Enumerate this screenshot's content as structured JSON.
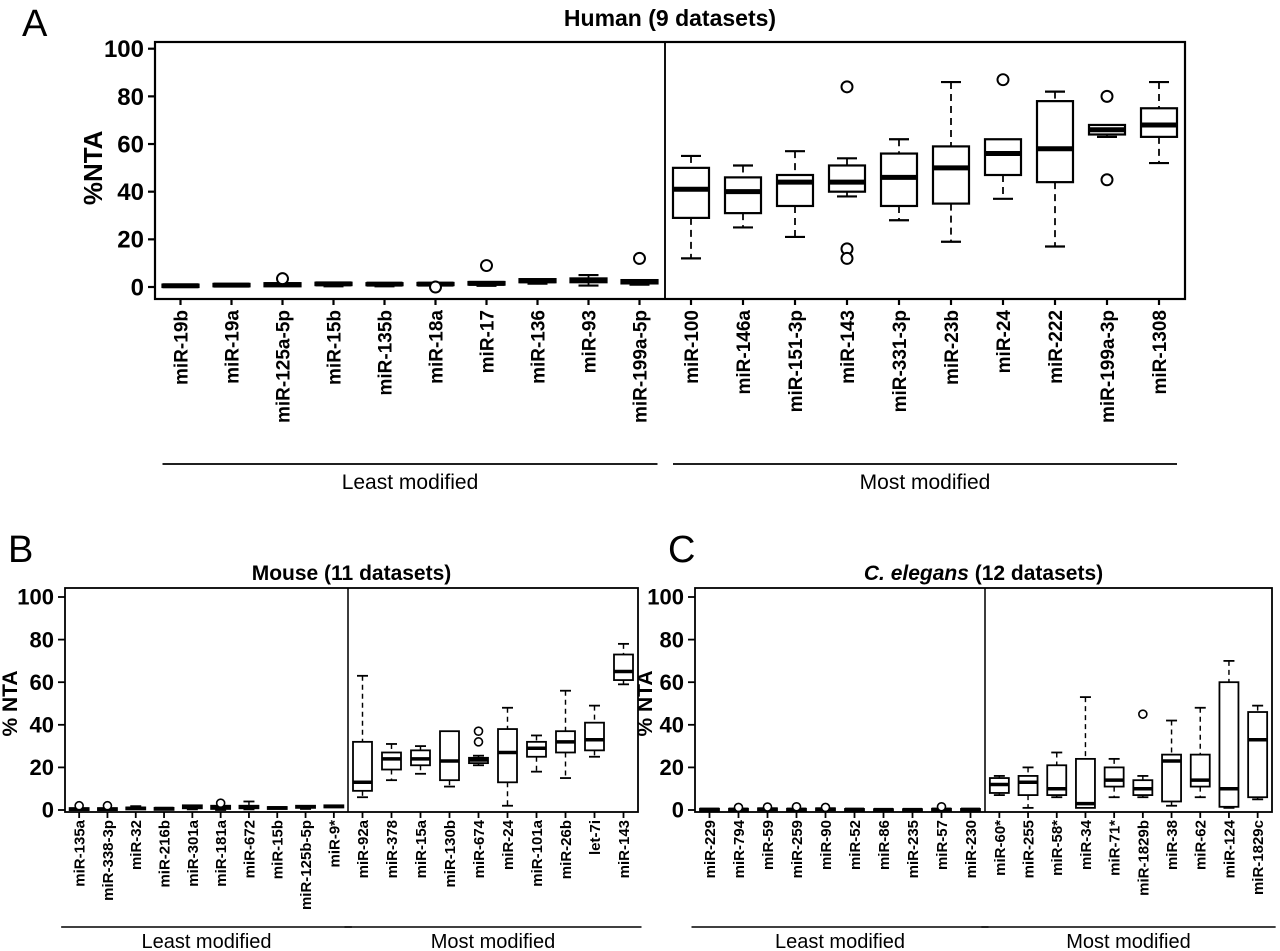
{
  "figure": {
    "background": "#ffffff",
    "ink_color": "#000000",
    "group_underline": true
  },
  "chart_data": [
    {
      "type": "box",
      "panel_label": "A",
      "title_italic_part": "",
      "title": "Human (9 datasets)",
      "ylabel": "%NTA",
      "ylim": [
        0,
        100
      ],
      "yticks": [
        0,
        20,
        40,
        60,
        80,
        100
      ],
      "grid": false,
      "groups": [
        {
          "label": "Least modified",
          "boxes": [
            {
              "name": "miR-19b",
              "whislo": 0,
              "q1": 0,
              "med": 0.5,
              "q3": 1,
              "whishi": 1.2,
              "fliers": []
            },
            {
              "name": "miR-19a",
              "whislo": 0,
              "q1": 0.3,
              "med": 0.8,
              "q3": 1.3,
              "whishi": 1.5,
              "fliers": []
            },
            {
              "name": "miR-125a-5p",
              "whislo": 0,
              "q1": 0.3,
              "med": 1,
              "q3": 1.6,
              "whishi": 2,
              "fliers": [
                3.5
              ]
            },
            {
              "name": "miR-15b",
              "whislo": 0.3,
              "q1": 0.8,
              "med": 1.3,
              "q3": 1.8,
              "whishi": 2.1,
              "fliers": []
            },
            {
              "name": "miR-135b",
              "whislo": 0.3,
              "q1": 0.8,
              "med": 1.2,
              "q3": 1.6,
              "whishi": 1.9,
              "fliers": []
            },
            {
              "name": "miR-18a",
              "whislo": 0.4,
              "q1": 0.8,
              "med": 1.2,
              "q3": 1.7,
              "whishi": 2,
              "fliers": [
                0
              ]
            },
            {
              "name": "miR-17",
              "whislo": 0.5,
              "q1": 1,
              "med": 1.5,
              "q3": 2.1,
              "whishi": 2.4,
              "fliers": [
                9
              ]
            },
            {
              "name": "miR-136",
              "whislo": 1.4,
              "q1": 2,
              "med": 2.6,
              "q3": 3.3,
              "whishi": 3.6,
              "fliers": []
            },
            {
              "name": "miR-93",
              "whislo": 0.6,
              "q1": 2,
              "med": 2.8,
              "q3": 3.6,
              "whishi": 5,
              "fliers": []
            },
            {
              "name": "miR-199a-5p",
              "whislo": 1,
              "q1": 1.5,
              "med": 2.1,
              "q3": 2.9,
              "whishi": 3.2,
              "fliers": [
                12
              ]
            }
          ]
        },
        {
          "label": "Most modified",
          "boxes": [
            {
              "name": "miR-100",
              "whislo": 12,
              "q1": 29,
              "med": 41,
              "q3": 50,
              "whishi": 55,
              "fliers": []
            },
            {
              "name": "miR-146a",
              "whislo": 25,
              "q1": 31,
              "med": 40,
              "q3": 46,
              "whishi": 51,
              "fliers": []
            },
            {
              "name": "miR-151-3p",
              "whislo": 21,
              "q1": 34,
              "med": 44,
              "q3": 47,
              "whishi": 57,
              "fliers": []
            },
            {
              "name": "miR-143",
              "whislo": 38,
              "q1": 40,
              "med": 44,
              "q3": 51,
              "whishi": 54,
              "fliers": [
                84,
                16,
                12
              ]
            },
            {
              "name": "miR-331-3p",
              "whislo": 28,
              "q1": 34,
              "med": 46,
              "q3": 56,
              "whishi": 62,
              "fliers": []
            },
            {
              "name": "miR-23b",
              "whislo": 19,
              "q1": 35,
              "med": 50,
              "q3": 59,
              "whishi": 86,
              "fliers": []
            },
            {
              "name": "miR-24",
              "whislo": 37,
              "q1": 47,
              "med": 56,
              "q3": 62,
              "whishi": 62,
              "fliers": [
                87
              ]
            },
            {
              "name": "miR-222",
              "whislo": 17,
              "q1": 44,
              "med": 58,
              "q3": 78,
              "whishi": 82,
              "fliers": []
            },
            {
              "name": "miR-199a-3p",
              "whislo": 63,
              "q1": 64,
              "med": 66,
              "q3": 68,
              "whishi": 68,
              "fliers": [
                80,
                45
              ]
            },
            {
              "name": "miR-1308",
              "whislo": 52,
              "q1": 63,
              "med": 68,
              "q3": 75,
              "whishi": 86,
              "fliers": []
            }
          ]
        }
      ]
    },
    {
      "type": "box",
      "panel_label": "B",
      "title_italic_part": "",
      "title": "Mouse (11 datasets)",
      "ylabel": "% NTA",
      "ylim": [
        0,
        100
      ],
      "yticks": [
        0,
        20,
        40,
        60,
        80,
        100
      ],
      "grid": false,
      "groups": [
        {
          "label": "Least modified",
          "boxes": [
            {
              "name": "miR-135a",
              "whislo": 0,
              "q1": 0,
              "med": 0.4,
              "q3": 0.9,
              "whishi": 1.1,
              "fliers": [
                2
              ]
            },
            {
              "name": "miR-338-3p",
              "whislo": 0,
              "q1": 0,
              "med": 0.4,
              "q3": 0.9,
              "whishi": 1.1,
              "fliers": [
                2
              ]
            },
            {
              "name": "miR-32",
              "whislo": 0,
              "q1": 0.3,
              "med": 0.8,
              "q3": 1.2,
              "whishi": 1.8,
              "fliers": []
            },
            {
              "name": "miR-216b",
              "whislo": 0,
              "q1": 0.3,
              "med": 0.7,
              "q3": 1,
              "whishi": 1.2,
              "fliers": []
            },
            {
              "name": "miR-301a",
              "whislo": 0.3,
              "q1": 0.8,
              "med": 1.5,
              "q3": 2.2,
              "whishi": 2.5,
              "fliers": []
            },
            {
              "name": "miR-181a",
              "whislo": 0,
              "q1": 0.5,
              "med": 1.2,
              "q3": 2,
              "whishi": 2.3,
              "fliers": [
                3.2
              ]
            },
            {
              "name": "miR-672",
              "whislo": 0.3,
              "q1": 0.8,
              "med": 1.3,
              "q3": 2,
              "whishi": 4,
              "fliers": []
            },
            {
              "name": "miR-15b",
              "whislo": 0.3,
              "q1": 0.6,
              "med": 1,
              "q3": 1.4,
              "whishi": 1.7,
              "fliers": []
            },
            {
              "name": "miR-125b-5p",
              "whislo": 0.5,
              "q1": 1,
              "med": 1.5,
              "q3": 2,
              "whishi": 2.4,
              "fliers": []
            },
            {
              "name": "miR-9*",
              "whislo": 0.8,
              "q1": 1.2,
              "med": 1.7,
              "q3": 2.2,
              "whishi": 2.5,
              "fliers": []
            }
          ]
        },
        {
          "label": "Most modified",
          "boxes": [
            {
              "name": "miR-92a",
              "whislo": 6,
              "q1": 9,
              "med": 13,
              "q3": 32,
              "whishi": 63,
              "fliers": []
            },
            {
              "name": "miR-378",
              "whislo": 14,
              "q1": 19,
              "med": 24,
              "q3": 27,
              "whishi": 31,
              "fliers": []
            },
            {
              "name": "miR-15a",
              "whislo": 17,
              "q1": 21,
              "med": 24,
              "q3": 28,
              "whishi": 30,
              "fliers": []
            },
            {
              "name": "miR-130b",
              "whislo": 11,
              "q1": 14,
              "med": 23,
              "q3": 37,
              "whishi": 37,
              "fliers": []
            },
            {
              "name": "miR-674",
              "whislo": 21,
              "q1": 22,
              "med": 23.5,
              "q3": 24.5,
              "whishi": 25.5,
              "fliers": [
                37,
                32
              ]
            },
            {
              "name": "miR-24",
              "whislo": 2,
              "q1": 13,
              "med": 27,
              "q3": 38,
              "whishi": 48,
              "fliers": []
            },
            {
              "name": "miR-101a",
              "whislo": 18,
              "q1": 25,
              "med": 29,
              "q3": 32,
              "whishi": 35,
              "fliers": []
            },
            {
              "name": "miR-26b",
              "whislo": 15,
              "q1": 27,
              "med": 32,
              "q3": 37,
              "whishi": 56,
              "fliers": []
            },
            {
              "name": "let-7i",
              "whislo": 25,
              "q1": 28,
              "med": 33,
              "q3": 41,
              "whishi": 49,
              "fliers": []
            },
            {
              "name": "miR-143",
              "whislo": 59,
              "q1": 61,
              "med": 65,
              "q3": 73,
              "whishi": 78,
              "fliers": []
            }
          ]
        }
      ]
    },
    {
      "type": "box",
      "panel_label": "C",
      "title_italic_part": "C. elegans",
      "title": " (12 datasets)",
      "ylabel": "% NTA",
      "ylim": [
        0,
        100
      ],
      "yticks": [
        0,
        20,
        40,
        60,
        80,
        100
      ],
      "grid": false,
      "groups": [
        {
          "label": "Least modified",
          "boxes": [
            {
              "name": "miR-229",
              "whislo": 0,
              "q1": 0,
              "med": 0.3,
              "q3": 0.6,
              "whishi": 0.8,
              "fliers": []
            },
            {
              "name": "miR-794",
              "whislo": 0,
              "q1": 0,
              "med": 0.3,
              "q3": 0.6,
              "whishi": 0.8,
              "fliers": [
                1.2
              ]
            },
            {
              "name": "miR-59",
              "whislo": 0,
              "q1": 0,
              "med": 0.4,
              "q3": 0.8,
              "whishi": 1,
              "fliers": [
                1.4
              ]
            },
            {
              "name": "miR-259",
              "whislo": 0,
              "q1": 0,
              "med": 0.3,
              "q3": 0.6,
              "whishi": 0.8,
              "fliers": [
                1.5
              ]
            },
            {
              "name": "miR-90",
              "whislo": 0,
              "q1": 0,
              "med": 0.4,
              "q3": 0.8,
              "whishi": 1,
              "fliers": [
                1.2
              ]
            },
            {
              "name": "miR-52",
              "whislo": 0,
              "q1": 0,
              "med": 0.3,
              "q3": 0.5,
              "whishi": 0.7,
              "fliers": []
            },
            {
              "name": "miR-86",
              "whislo": 0,
              "q1": 0,
              "med": 0.2,
              "q3": 0.4,
              "whishi": 0.5,
              "fliers": []
            },
            {
              "name": "miR-235",
              "whislo": 0,
              "q1": 0,
              "med": 0.2,
              "q3": 0.4,
              "whishi": 0.5,
              "fliers": []
            },
            {
              "name": "miR-57",
              "whislo": 0,
              "q1": 0,
              "med": 0.3,
              "q3": 0.6,
              "whishi": 0.8,
              "fliers": [
                1.5
              ]
            },
            {
              "name": "miR-230",
              "whislo": 0,
              "q1": 0,
              "med": 0.3,
              "q3": 0.5,
              "whishi": 0.6,
              "fliers": []
            }
          ]
        },
        {
          "label": "Most modified",
          "boxes": [
            {
              "name": "miR-60*",
              "whislo": 7,
              "q1": 8,
              "med": 12,
              "q3": 15,
              "whishi": 16,
              "fliers": []
            },
            {
              "name": "miR-255",
              "whislo": 1,
              "q1": 7,
              "med": 13,
              "q3": 16,
              "whishi": 20,
              "fliers": []
            },
            {
              "name": "miR-58*",
              "whislo": 6,
              "q1": 7,
              "med": 10,
              "q3": 21,
              "whishi": 27,
              "fliers": []
            },
            {
              "name": "miR-34",
              "whislo": 1,
              "q1": 1,
              "med": 3,
              "q3": 24,
              "whishi": 53,
              "fliers": []
            },
            {
              "name": "miR-71*",
              "whislo": 6,
              "q1": 11,
              "med": 14,
              "q3": 20,
              "whishi": 24,
              "fliers": []
            },
            {
              "name": "miR-1829b",
              "whislo": 6,
              "q1": 7,
              "med": 10,
              "q3": 14,
              "whishi": 16,
              "fliers": [
                45
              ]
            },
            {
              "name": "miR-38",
              "whislo": 2,
              "q1": 4,
              "med": 23,
              "q3": 26,
              "whishi": 42,
              "fliers": []
            },
            {
              "name": "miR-62",
              "whislo": 6,
              "q1": 11,
              "med": 14,
              "q3": 26,
              "whishi": 48,
              "fliers": []
            },
            {
              "name": "miR-124",
              "whislo": 1,
              "q1": 1.5,
              "med": 10,
              "q3": 60,
              "whishi": 70,
              "fliers": []
            },
            {
              "name": "miR-1829c",
              "whislo": 5,
              "q1": 6,
              "med": 33,
              "q3": 46,
              "whishi": 49,
              "fliers": []
            }
          ]
        }
      ]
    }
  ]
}
